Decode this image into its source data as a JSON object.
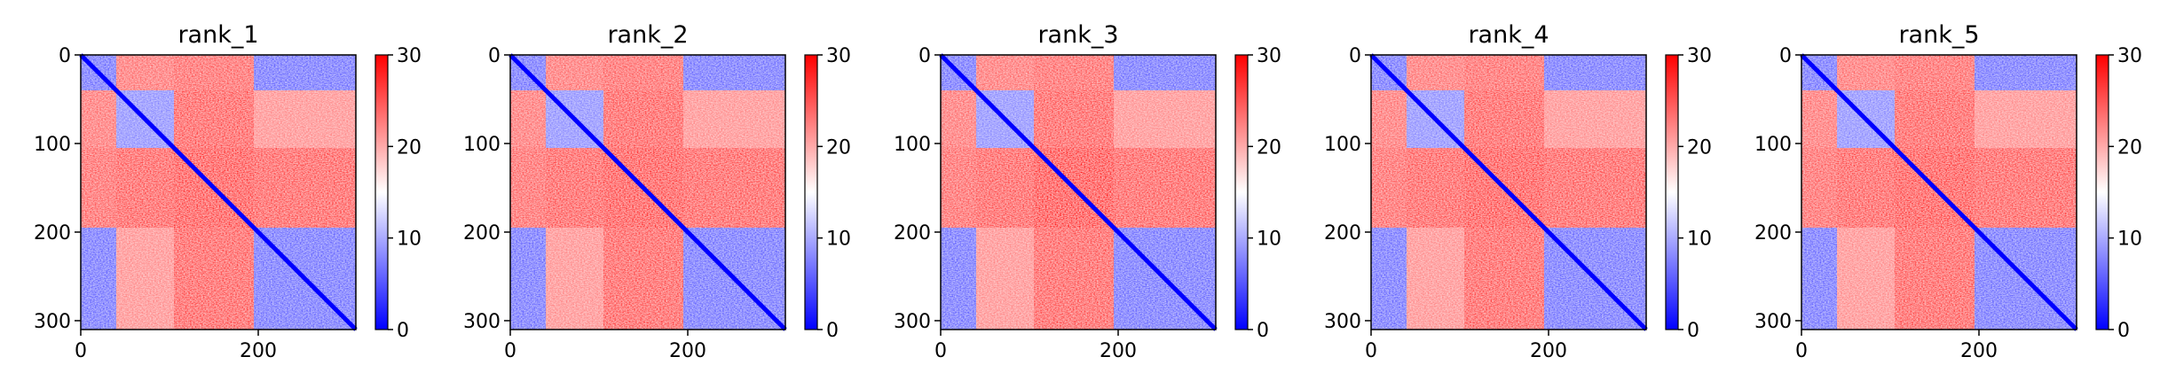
{
  "chart_data": [
    {
      "type": "heatmap",
      "title": "rank_1",
      "xlabel": "",
      "ylabel": "",
      "x_ticks": [
        "0",
        "200"
      ],
      "y_ticks": [
        "0",
        "100",
        "200",
        "300"
      ],
      "xlim": [
        0,
        310
      ],
      "ylim": [
        310,
        0
      ],
      "colorbar": {
        "ticks": [
          "0",
          "10",
          "20",
          "30"
        ],
        "range": [
          0,
          30
        ],
        "colormap": "bwr",
        "colors": [
          "#0000ff",
          "#ffffff",
          "#ff0000"
        ]
      },
      "domains": [
        [
          0,
          40
        ],
        [
          40,
          105
        ],
        [
          105,
          195
        ],
        [
          195,
          310
        ]
      ],
      "block_values": [
        [
          6,
          24,
          25,
          6
        ],
        [
          24,
          8,
          26,
          22
        ],
        [
          25,
          26,
          27,
          26
        ],
        [
          6,
          22,
          26,
          6
        ]
      ],
      "diagonal_value": 0,
      "grid": false
    },
    {
      "type": "heatmap",
      "title": "rank_2",
      "xlabel": "",
      "ylabel": "",
      "x_ticks": [
        "0",
        "200"
      ],
      "y_ticks": [
        "0",
        "100",
        "200",
        "300"
      ],
      "xlim": [
        0,
        310
      ],
      "ylim": [
        310,
        0
      ],
      "colorbar": {
        "ticks": [
          "0",
          "10",
          "20",
          "30"
        ],
        "range": [
          0,
          30
        ],
        "colormap": "bwr",
        "colors": [
          "#0000ff",
          "#ffffff",
          "#ff0000"
        ]
      },
      "domains": [
        [
          0,
          40
        ],
        [
          40,
          105
        ],
        [
          105,
          195
        ],
        [
          195,
          310
        ]
      ],
      "block_values": [
        [
          6,
          24,
          25,
          6
        ],
        [
          24,
          8,
          26,
          22
        ],
        [
          25,
          26,
          27,
          26
        ],
        [
          6,
          22,
          26,
          6
        ]
      ],
      "diagonal_value": 0,
      "grid": false
    },
    {
      "type": "heatmap",
      "title": "rank_3",
      "xlabel": "",
      "ylabel": "",
      "x_ticks": [
        "0",
        "200"
      ],
      "y_ticks": [
        "0",
        "100",
        "200",
        "300"
      ],
      "xlim": [
        0,
        310
      ],
      "ylim": [
        310,
        0
      ],
      "colorbar": {
        "ticks": [
          "0",
          "10",
          "20",
          "30"
        ],
        "range": [
          0,
          30
        ],
        "colormap": "bwr",
        "colors": [
          "#0000ff",
          "#ffffff",
          "#ff0000"
        ]
      },
      "domains": [
        [
          0,
          40
        ],
        [
          40,
          105
        ],
        [
          105,
          195
        ],
        [
          195,
          310
        ]
      ],
      "block_values": [
        [
          6,
          24,
          25,
          6
        ],
        [
          24,
          8,
          26,
          22
        ],
        [
          25,
          26,
          28,
          26
        ],
        [
          6,
          22,
          26,
          6
        ]
      ],
      "diagonal_value": 0,
      "grid": false
    },
    {
      "type": "heatmap",
      "title": "rank_4",
      "xlabel": "",
      "ylabel": "",
      "x_ticks": [
        "0",
        "200"
      ],
      "y_ticks": [
        "0",
        "100",
        "200",
        "300"
      ],
      "xlim": [
        0,
        310
      ],
      "ylim": [
        310,
        0
      ],
      "colorbar": {
        "ticks": [
          "0",
          "10",
          "20",
          "30"
        ],
        "range": [
          0,
          30
        ],
        "colormap": "bwr",
        "colors": [
          "#0000ff",
          "#ffffff",
          "#ff0000"
        ]
      },
      "domains": [
        [
          0,
          40
        ],
        [
          40,
          105
        ],
        [
          105,
          195
        ],
        [
          195,
          310
        ]
      ],
      "block_values": [
        [
          6,
          24,
          25,
          6
        ],
        [
          24,
          8,
          26,
          22
        ],
        [
          25,
          26,
          27,
          26
        ],
        [
          6,
          22,
          26,
          6
        ]
      ],
      "diagonal_value": 0,
      "grid": false
    },
    {
      "type": "heatmap",
      "title": "rank_5",
      "xlabel": "",
      "ylabel": "",
      "x_ticks": [
        "0",
        "200"
      ],
      "y_ticks": [
        "0",
        "100",
        "200",
        "300"
      ],
      "xlim": [
        0,
        310
      ],
      "ylim": [
        310,
        0
      ],
      "colorbar": {
        "ticks": [
          "0",
          "10",
          "20",
          "30"
        ],
        "range": [
          0,
          30
        ],
        "colormap": "bwr",
        "colors": [
          "#0000ff",
          "#ffffff",
          "#ff0000"
        ]
      },
      "domains": [
        [
          0,
          40
        ],
        [
          40,
          105
        ],
        [
          105,
          195
        ],
        [
          195,
          310
        ]
      ],
      "block_values": [
        [
          6,
          24,
          25,
          6
        ],
        [
          24,
          8,
          26,
          22
        ],
        [
          25,
          26,
          27,
          26
        ],
        [
          6,
          22,
          26,
          6
        ]
      ],
      "diagonal_value": 0,
      "grid": false
    }
  ]
}
